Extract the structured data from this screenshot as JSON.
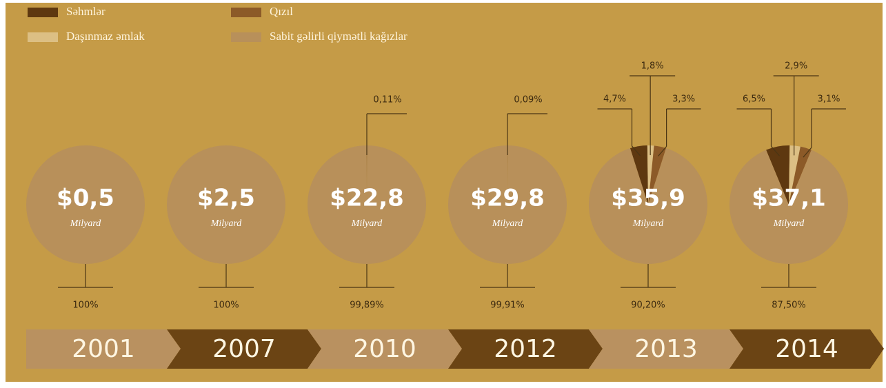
{
  "legend": [
    {
      "name": "Səhmlər",
      "color": "#5e3810"
    },
    {
      "name": "Qızıl",
      "color": "#8c5a28"
    },
    {
      "name": "Daşınmaz əmlak",
      "color": "#dcbf84"
    },
    {
      "name": "Sabit gəlirli qiymətli kağızlar",
      "color": "#b8905a"
    }
  ],
  "chart_data": [
    {
      "type": "pie",
      "year": "2001",
      "total": "$0,5",
      "unit": "Milyard",
      "categories": [
        "Sabit gəlirli qiymətli kağızlar"
      ],
      "values": [
        100
      ],
      "value_labels": [
        "100%"
      ]
    },
    {
      "type": "pie",
      "year": "2007",
      "total": "$2,5",
      "unit": "Milyard",
      "categories": [
        "Sabit gəlirli qiymətli kağızlar"
      ],
      "values": [
        100
      ],
      "value_labels": [
        "100%"
      ]
    },
    {
      "type": "pie",
      "year": "2010",
      "total": "$22,8",
      "unit": "Milyard",
      "categories": [
        "Səhmlər",
        "Sabit gəlirli qiymətli kağızlar"
      ],
      "values": [
        0.11,
        99.89
      ],
      "value_labels": [
        "0,11%",
        "99,89%"
      ]
    },
    {
      "type": "pie",
      "year": "2012",
      "total": "$29,8",
      "unit": "Milyard",
      "categories": [
        "Səhmlər",
        "Sabit gəlirli qiymətli kağızlar"
      ],
      "values": [
        0.09,
        99.91
      ],
      "value_labels": [
        "0,09%",
        "99,91%"
      ]
    },
    {
      "type": "pie",
      "year": "2013",
      "total": "$35,9",
      "unit": "Milyard",
      "categories": [
        "Səhmlər",
        "Daşınmaz əmlak",
        "Qızıl",
        "Sabit gəlirli qiymətli kağızlar"
      ],
      "values": [
        4.7,
        1.8,
        3.3,
        90.2
      ],
      "value_labels": [
        "4,7%",
        "1,8%",
        "3,3%",
        "90,20%"
      ]
    },
    {
      "type": "pie",
      "year": "2014",
      "total": "$37,1",
      "unit": "Milyard",
      "categories": [
        "Səhmlər",
        "Daşınmaz əmlak",
        "Qızıl",
        "Sabit gəlirli qiymətli kağızlar"
      ],
      "values": [
        6.5,
        2.9,
        3.1,
        87.5
      ],
      "value_labels": [
        "6,5%",
        "2,9%",
        "3,1%",
        "87,50%"
      ]
    }
  ]
}
